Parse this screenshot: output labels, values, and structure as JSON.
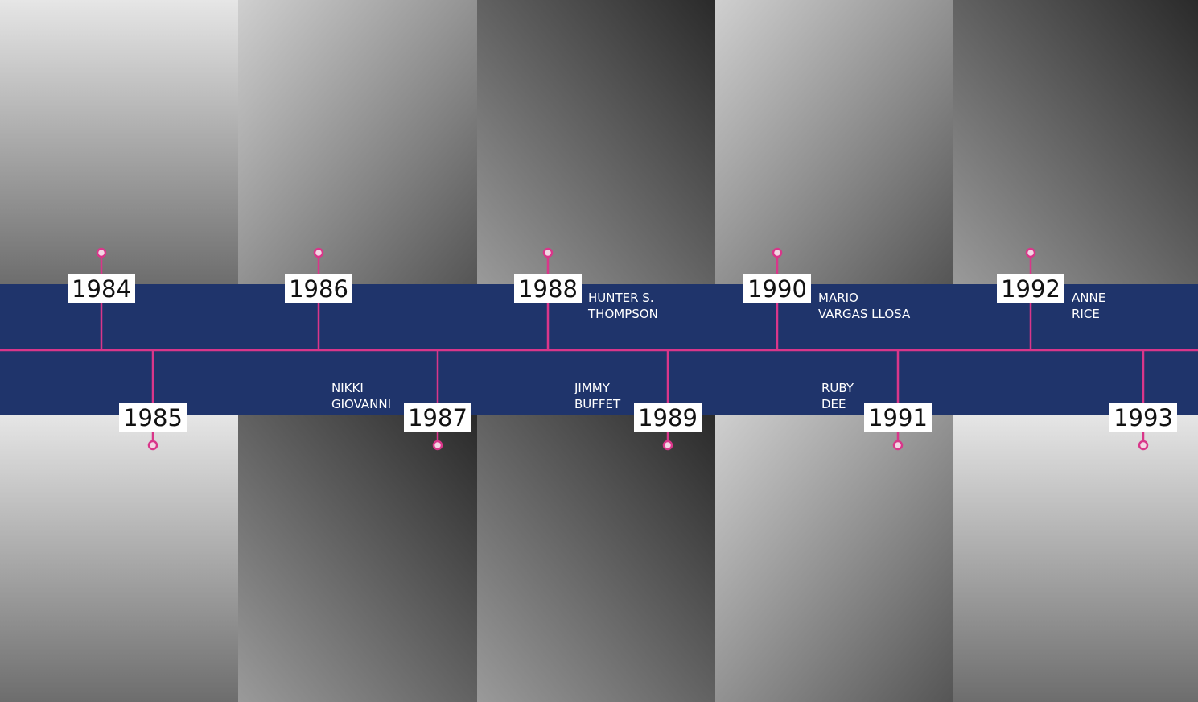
{
  "timeline": {
    "events": [
      {
        "year": "1984"
      },
      {
        "year": "1985"
      },
      {
        "year": "1986"
      },
      {
        "year": "1987",
        "name": [
          "NIKKI",
          "GIOVANNI"
        ]
      },
      {
        "year": "1988",
        "name": [
          "HUNTER S.",
          "THOMPSON"
        ]
      },
      {
        "year": "1989",
        "name": [
          "JIMMY",
          "BUFFET"
        ]
      },
      {
        "year": "1990",
        "name": [
          "MARIO",
          "VARGAS LLOSA"
        ]
      },
      {
        "year": "1991",
        "name": [
          "RUBY",
          "DEE"
        ]
      },
      {
        "year": "1992",
        "name": [
          "ANNE",
          "RICE"
        ]
      },
      {
        "year": "1993"
      }
    ]
  }
}
